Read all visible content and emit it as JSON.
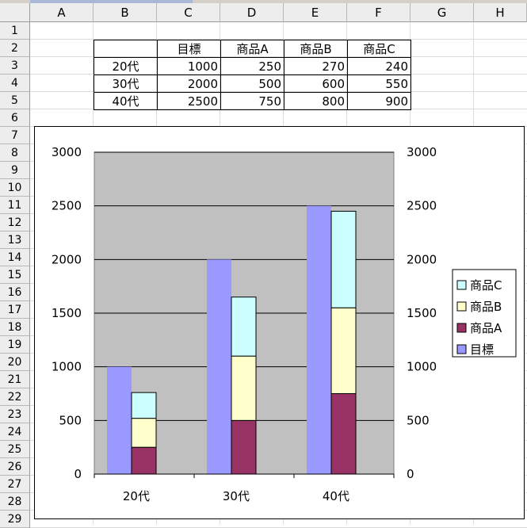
{
  "columns": [
    "A",
    "B",
    "C",
    "D",
    "E",
    "F",
    "G",
    "H"
  ],
  "rows": [
    "1",
    "2",
    "3",
    "4",
    "5",
    "6",
    "7",
    "8",
    "9",
    "10",
    "11",
    "12",
    "13",
    "14",
    "15",
    "16",
    "17",
    "18",
    "19",
    "20",
    "21",
    "22",
    "23",
    "24",
    "25",
    "26",
    "27",
    "28",
    "29"
  ],
  "table": {
    "headers": [
      "",
      "目標",
      "商品A",
      "商品B",
      "商品C"
    ],
    "rows": [
      {
        "label": "20代",
        "values": [
          "1000",
          "250",
          "270",
          "240"
        ]
      },
      {
        "label": "30代",
        "values": [
          "2000",
          "500",
          "600",
          "550"
        ]
      },
      {
        "label": "40代",
        "values": [
          "2500",
          "750",
          "800",
          "900"
        ]
      }
    ]
  },
  "chart_data": {
    "type": "bar",
    "categories": [
      "20代",
      "30代",
      "40代"
    ],
    "series": [
      {
        "name": "目標",
        "values": [
          1000,
          2000,
          2500
        ],
        "stack": "target",
        "color": "#9999ff"
      },
      {
        "name": "商品A",
        "values": [
          250,
          500,
          750
        ],
        "stack": "products",
        "color": "#993366"
      },
      {
        "name": "商品B",
        "values": [
          270,
          600,
          800
        ],
        "stack": "products",
        "color": "#ffffcc"
      },
      {
        "name": "商品C",
        "values": [
          240,
          550,
          900
        ],
        "stack": "products",
        "color": "#ccffff"
      }
    ],
    "ylim": [
      0,
      3000
    ],
    "yticks": [
      "0",
      "500",
      "1000",
      "1500",
      "2000",
      "2500",
      "3000"
    ],
    "y2ticks": [
      "0",
      "500",
      "1000",
      "1500",
      "2000",
      "2500",
      "3000"
    ],
    "legend": [
      "商品C",
      "商品B",
      "商品A",
      "目標"
    ],
    "legend_position": "right",
    "plot_background": "#c0c0c0",
    "grid": true,
    "title": "",
    "xlabel": "",
    "ylabel": ""
  }
}
